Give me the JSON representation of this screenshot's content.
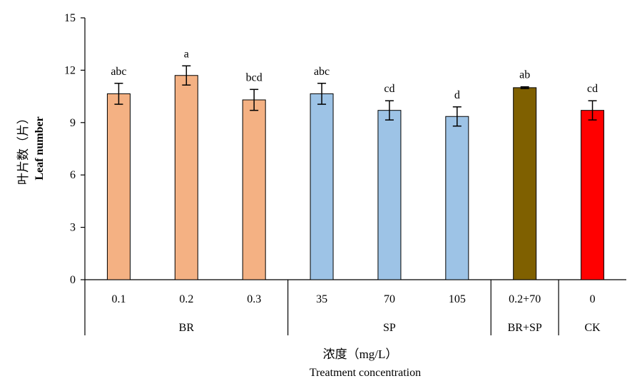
{
  "chart_data": {
    "type": "bar",
    "categories": [
      "0.1",
      "0.2",
      "0.3",
      "35",
      "70",
      "105",
      "0.2+70",
      "0"
    ],
    "groups": [
      {
        "label": "BR",
        "start": 0,
        "end": 2
      },
      {
        "label": "SP",
        "start": 3,
        "end": 5
      },
      {
        "label": "BR+SP",
        "start": 6,
        "end": 6
      },
      {
        "label": "CK",
        "start": 7,
        "end": 7
      }
    ],
    "values": [
      10.65,
      11.7,
      10.3,
      10.65,
      9.7,
      9.35,
      11.0,
      9.7
    ],
    "errors": [
      0.6,
      0.55,
      0.6,
      0.6,
      0.55,
      0.55,
      0.05,
      0.55
    ],
    "significance": [
      "abc",
      "a",
      "bcd",
      "abc",
      "cd",
      "d",
      "ab",
      "cd"
    ],
    "bar_colors": [
      "#F4B183",
      "#F4B183",
      "#F4B183",
      "#9DC3E6",
      "#9DC3E6",
      "#9DC3E6",
      "#7F6000",
      "#FF0000"
    ],
    "ylabel": "叶片数（片）",
    "ylabel_en": "Leaf number",
    "xlabel": "浓度（mg/L）",
    "xlabel_en": "Treatment concentration",
    "ylim": [
      0,
      15
    ],
    "yticks": [
      "0",
      "3",
      "6",
      "9",
      "12",
      "15"
    ],
    "grid": false,
    "legend": "none"
  }
}
